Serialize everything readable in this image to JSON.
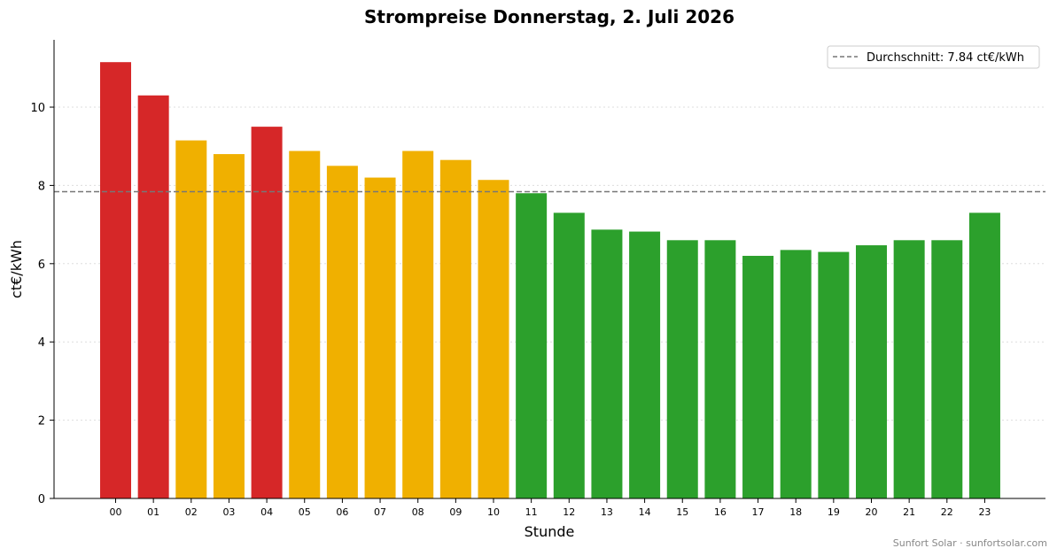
{
  "chart_data": {
    "type": "bar",
    "title": "Strompreise Donnerstag, 2. Juli 2026",
    "xlabel": "Stunde",
    "ylabel": "ct€/kWh",
    "categories": [
      "00",
      "01",
      "02",
      "03",
      "04",
      "05",
      "06",
      "07",
      "08",
      "09",
      "10",
      "11",
      "12",
      "13",
      "14",
      "15",
      "16",
      "17",
      "18",
      "19",
      "20",
      "21",
      "22",
      "23"
    ],
    "values": [
      11.15,
      10.3,
      9.15,
      8.8,
      9.5,
      8.88,
      8.5,
      8.2,
      8.88,
      8.65,
      8.14,
      7.8,
      7.3,
      6.87,
      6.82,
      6.6,
      6.6,
      6.2,
      6.35,
      6.3,
      6.47,
      6.6,
      6.6,
      7.3
    ],
    "bar_colors": [
      "#d62728",
      "#d62728",
      "#f0b000",
      "#f0b000",
      "#d62728",
      "#f0b000",
      "#f0b000",
      "#f0b000",
      "#f0b000",
      "#f0b000",
      "#f0b000",
      "#2ca02c",
      "#2ca02c",
      "#2ca02c",
      "#2ca02c",
      "#2ca02c",
      "#2ca02c",
      "#2ca02c",
      "#2ca02c",
      "#2ca02c",
      "#2ca02c",
      "#2ca02c",
      "#2ca02c",
      "#2ca02c"
    ],
    "ylim": [
      0,
      11.72
    ],
    "yticks": [
      0,
      2,
      4,
      6,
      8,
      10
    ],
    "grid": "horizontal dotted",
    "average": {
      "value": 7.84,
      "label": "Durchschnitt: 7.84 ct€/kWh",
      "color": "#777777",
      "style": "dashed"
    },
    "legend_position": "top-right",
    "footer": "Sunfort Solar · sunfortsolar.com"
  }
}
